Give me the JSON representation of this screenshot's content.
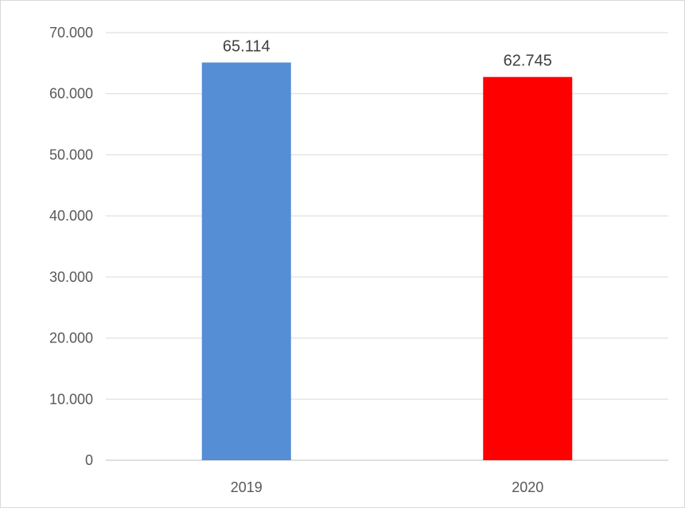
{
  "chart_data": {
    "type": "bar",
    "title": "",
    "xlabel": "",
    "ylabel": "",
    "categories": [
      "2019",
      "2020"
    ],
    "values": [
      65114,
      62745
    ],
    "value_labels": [
      "65.114",
      "62.745"
    ],
    "bar_colors": [
      "#558ED5",
      "#FF0000"
    ],
    "ylim": [
      0,
      70000
    ],
    "y_ticks": [
      0,
      10000,
      20000,
      30000,
      40000,
      50000,
      60000,
      70000
    ],
    "y_tick_labels": [
      "0",
      "10.000",
      "20.000",
      "30.000",
      "40.000",
      "50.000",
      "60.000",
      "70.000"
    ],
    "grid": true,
    "legend": "none"
  }
}
